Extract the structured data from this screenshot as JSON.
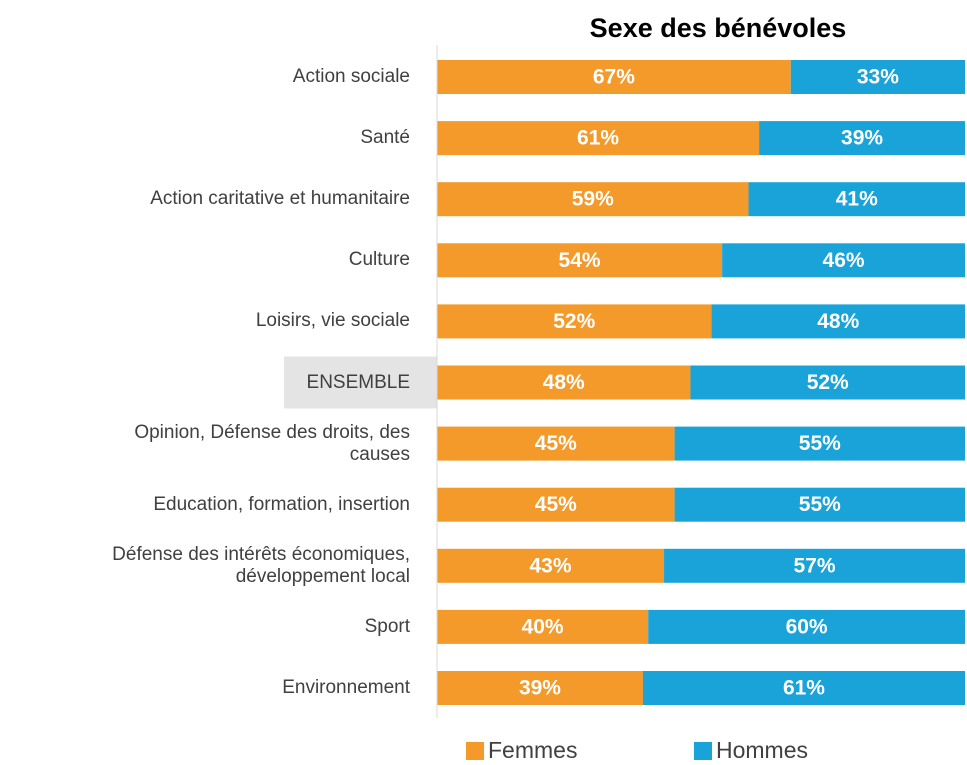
{
  "chart_data": {
    "type": "stacked_bar_horizontal",
    "title": "Sexe des bénévoles",
    "categories": [
      "Action sociale",
      "Santé",
      "Action caritative et humanitaire",
      "Culture",
      "Loisirs, vie sociale",
      "ENSEMBLE",
      "Opinion, Défense des droits, des\ncauses",
      "Education, formation, insertion",
      "Défense des intérêts économiques,\ndéveloppement local",
      "Sport",
      "Environnement"
    ],
    "series": [
      {
        "name": "Femmes",
        "color": "#f39a2b",
        "values": [
          67,
          61,
          59,
          54,
          52,
          48,
          45,
          45,
          43,
          40,
          39
        ],
        "value_labels": [
          "67%",
          "61%",
          "59%",
          "54%",
          "52%",
          "48%",
          "45%",
          "45%",
          "43%",
          "40%",
          "39%"
        ]
      },
      {
        "name": "Hommes",
        "color": "#1aa3d9",
        "values": [
          33,
          39,
          41,
          46,
          48,
          52,
          55,
          55,
          57,
          60,
          61
        ],
        "value_labels": [
          "33%",
          "39%",
          "41%",
          "46%",
          "48%",
          "52%",
          "55%",
          "55%",
          "57%",
          "60%",
          "61%"
        ]
      }
    ],
    "xlim": [
      0,
      100
    ],
    "highlight_index": 5,
    "legend": "bottom"
  }
}
